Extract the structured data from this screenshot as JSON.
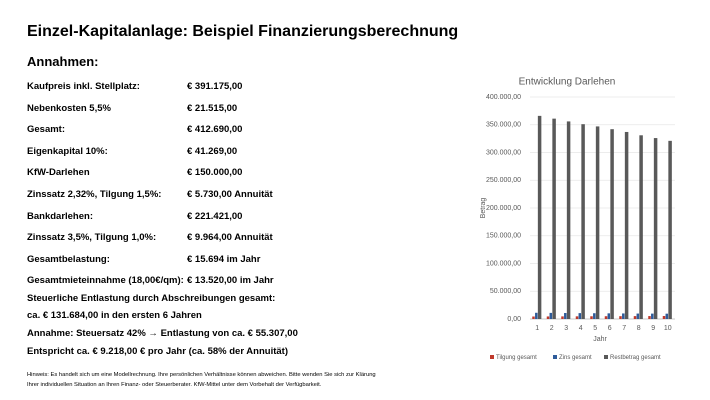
{
  "title": "Einzel-Kapitalanlage: Beispiel Finanzierungsberechnung",
  "section_heading": "Annahmen:",
  "rows": [
    [
      "Kaufpreis inkl. Stellplatz:",
      "€ 391.175,00"
    ],
    [
      "Nebenkosten 5,5%",
      "€ 21.515,00"
    ],
    [
      "Gesamt:",
      "€ 412.690,00"
    ],
    [
      "Eigenkapital 10%:",
      "€ 41.269,00"
    ],
    [
      "KfW-Darlehen",
      "€ 150.000,00"
    ],
    [
      "Zinssatz 2,32%, Tilgung 1,5%:",
      "€ 5.730,00 Annuität"
    ],
    [
      "Bankdarlehen:",
      "€ 221.421,00"
    ],
    [
      "Zinssatz 3,5%, Tilgung 1,0%:",
      "€ 9.964,00 Annuität"
    ],
    [
      "Gesamtbelastung:",
      "€ 15.694 im  Jahr"
    ],
    [
      "Gesamtmieteinnahme (18,00€/qm):",
      "€ 13.520,00 im Jahr"
    ]
  ],
  "notes": [
    "Steuerliche Entlastung durch Abschreibungen gesamt:",
    "ca. € 131.684,00 in den ersten 6 Jahren",
    "Annahme: Steuersatz 42% → Entlastung von ca. € 55.307,00",
    "Entspricht ca. € 9.218,00 € pro Jahr (ca. 58% der Annuität)"
  ],
  "footnote": [
    "Hinweis: Es handelt sich um eine Modellrechnung. Ihre persönlichen Verhältnisse können abweichen. Bitte wenden Sie sich zur Klärung",
    "Ihrer individuellen Situation an Ihren Finanz- oder Steuerberater. KfW-Mittel unter dem Vorbehalt der Verfügbarkeit."
  ],
  "chart_data": {
    "type": "bar",
    "title": "Entwicklung Darlehen",
    "x_label": "Jahr",
    "y_label": "Betrag",
    "categories": [
      "1",
      "2",
      "3",
      "4",
      "5",
      "6",
      "7",
      "8",
      "9",
      "10"
    ],
    "series": [
      {
        "name": "Tilgung gesamt",
        "color": "#c0392b",
        "values": [
          4500,
          4600,
          4700,
          4800,
          4900,
          5000,
          5100,
          5200,
          5300,
          5400
        ]
      },
      {
        "name": "Zins gesamt",
        "color": "#2e5b9a",
        "values": [
          11200,
          11000,
          10800,
          10600,
          10400,
          10200,
          10000,
          9800,
          9700,
          9600
        ]
      },
      {
        "name": "Restbetrag gesamt",
        "color": "#595959",
        "values": [
          366000,
          361000,
          356000,
          351000,
          347000,
          342000,
          337000,
          331000,
          326000,
          321000
        ]
      }
    ],
    "ylim": [
      0,
      400000
    ],
    "yticks": [
      {
        "value": 0,
        "label": "0,00"
      },
      {
        "value": 50000,
        "label": "50.000,00"
      },
      {
        "value": 100000,
        "label": "100.000,00"
      },
      {
        "value": 150000,
        "label": "150.000,00"
      },
      {
        "value": 200000,
        "label": "200.000,00"
      },
      {
        "value": 250000,
        "label": "250.000,00"
      },
      {
        "value": 300000,
        "label": "300.000,00"
      },
      {
        "value": 350000,
        "label": "350.000,00"
      },
      {
        "value": 400000,
        "label": "400.000,00"
      }
    ]
  }
}
